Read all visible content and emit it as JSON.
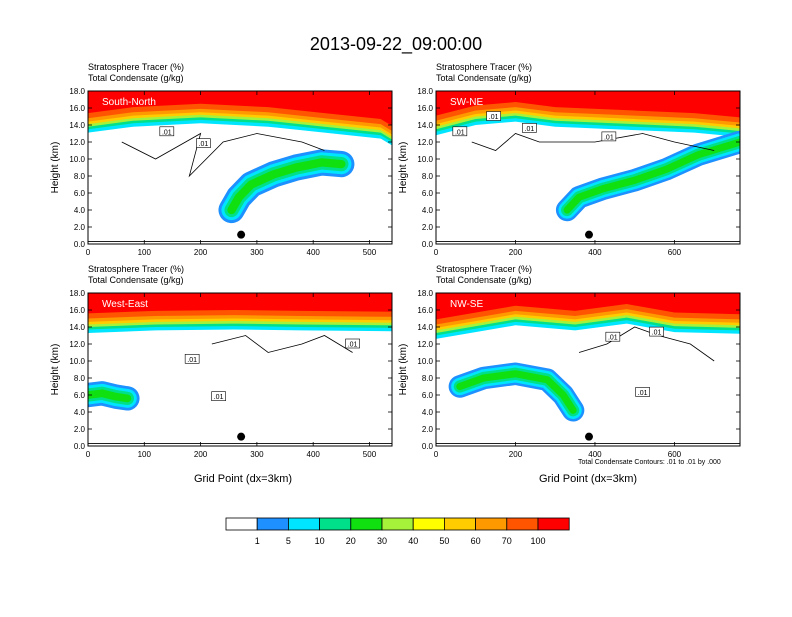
{
  "title": "2013-09-22_09:00:00",
  "chart_data": {
    "type": "contour",
    "y_axis_label": "Height (km)",
    "x_axis_label": "Grid Point (dx=3km)",
    "y_ticks": [
      "0.0",
      "2.0",
      "4.0",
      "6.0",
      "8.0",
      "10.0",
      "12.0",
      "14.0",
      "16.0",
      "18.0"
    ],
    "ylim": [
      0,
      18
    ],
    "field_title": "Stratosphere Tracer   (%)",
    "contour_title": "Total Condensate   (g/kg)",
    "contour_info": "Total Condensate Contours: .01 to .01 by .000",
    "contour_label": ".01",
    "colorbar": {
      "labels": [
        "1",
        "5",
        "10",
        "20",
        "30",
        "40",
        "50",
        "60",
        "70",
        "100"
      ],
      "colors": [
        "#ffffff",
        "#1e90ff",
        "#00e5ff",
        "#00e08a",
        "#10e010",
        "#a6f23a",
        "#ffff00",
        "#ffcc00",
        "#ff9900",
        "#ff5500",
        "#ff0000"
      ]
    },
    "panels": [
      {
        "name": "South-North",
        "xlim": [
          0,
          540
        ],
        "x_ticks": [
          "0",
          "100",
          "200",
          "300",
          "400",
          "500"
        ],
        "marker_x": 272,
        "marker_h": 1.1,
        "plume": [
          [
            255,
            4
          ],
          [
            268,
            5.5
          ],
          [
            290,
            7
          ],
          [
            330,
            8.2
          ],
          [
            370,
            9
          ],
          [
            415,
            9.6
          ],
          [
            450,
            9.4
          ]
        ],
        "plume_width": 1.4,
        "contour_labels": [
          {
            "x": 140,
            "h": 13.2
          },
          {
            "x": 205,
            "h": 11.8
          }
        ],
        "top_band": [
          [
            0,
            14.5
          ],
          [
            80,
            15.2
          ],
          [
            200,
            15.6
          ],
          [
            320,
            15.2
          ],
          [
            420,
            14.5
          ],
          [
            520,
            13.8
          ],
          [
            540,
            13.0
          ]
        ],
        "outline": [
          [
            60,
            12
          ],
          [
            120,
            10
          ],
          [
            200,
            13
          ],
          [
            180,
            8
          ],
          [
            240,
            12
          ],
          [
            300,
            13
          ],
          [
            380,
            12
          ],
          [
            420,
            11
          ]
        ]
      },
      {
        "name": "SW-NE",
        "xlim": [
          0,
          765
        ],
        "x_ticks": [
          "0",
          "200",
          "400",
          "600"
        ],
        "marker_x": 385,
        "marker_h": 1.1,
        "plume": [
          [
            330,
            4
          ],
          [
            360,
            5.5
          ],
          [
            420,
            6.5
          ],
          [
            500,
            7.5
          ],
          [
            580,
            8.8
          ],
          [
            660,
            10.5
          ],
          [
            765,
            12
          ]
        ],
        "plume_width": 1.2,
        "contour_labels": [
          {
            "x": 60,
            "h": 13.2
          },
          {
            "x": 145,
            "h": 15.0
          },
          {
            "x": 235,
            "h": 13.6
          },
          {
            "x": 435,
            "h": 12.6
          }
        ],
        "top_band": [
          [
            0,
            14.2
          ],
          [
            100,
            15.4
          ],
          [
            200,
            15.8
          ],
          [
            300,
            15.2
          ],
          [
            500,
            14.8
          ],
          [
            650,
            14.5
          ],
          [
            765,
            14.0
          ]
        ],
        "outline": [
          [
            90,
            12
          ],
          [
            150,
            11
          ],
          [
            200,
            13
          ],
          [
            260,
            12
          ],
          [
            400,
            12
          ],
          [
            520,
            13
          ],
          [
            600,
            12
          ],
          [
            700,
            11
          ]
        ]
      },
      {
        "name": "West-East",
        "xlim": [
          0,
          540
        ],
        "x_ticks": [
          "0",
          "100",
          "200",
          "300",
          "400",
          "500"
        ],
        "marker_x": 272,
        "marker_h": 1.1,
        "plume": [
          [
            0,
            6
          ],
          [
            25,
            6.2
          ],
          [
            50,
            5.8
          ],
          [
            70,
            5.6
          ]
        ],
        "plume_width": 1.3,
        "contour_labels": [
          {
            "x": 185,
            "h": 10.2
          },
          {
            "x": 470,
            "h": 12.0
          },
          {
            "x": 232,
            "h": 5.8
          }
        ],
        "top_band": [
          [
            0,
            14.7
          ],
          [
            120,
            15.0
          ],
          [
            260,
            15.1
          ],
          [
            380,
            15.0
          ],
          [
            540,
            14.9
          ]
        ],
        "outline": [
          [
            220,
            12
          ],
          [
            280,
            13
          ],
          [
            320,
            11
          ],
          [
            380,
            12
          ],
          [
            420,
            13
          ],
          [
            470,
            11
          ]
        ]
      },
      {
        "name": "NW-SE",
        "xlim": [
          0,
          765
        ],
        "x_ticks": [
          "0",
          "200",
          "400",
          "600"
        ],
        "marker_x": 385,
        "marker_h": 1.1,
        "plume": [
          [
            60,
            7
          ],
          [
            120,
            8
          ],
          [
            200,
            8.5
          ],
          [
            280,
            7.8
          ],
          [
            320,
            6
          ],
          [
            345,
            4.2
          ]
        ],
        "plume_width": 1.2,
        "contour_labels": [
          {
            "x": 445,
            "h": 12.8
          },
          {
            "x": 555,
            "h": 13.4
          },
          {
            "x": 520,
            "h": 6.3
          }
        ],
        "top_band": [
          [
            0,
            14.0
          ],
          [
            200,
            15.6
          ],
          [
            350,
            15.0
          ],
          [
            480,
            15.8
          ],
          [
            600,
            14.8
          ],
          [
            765,
            14.6
          ]
        ],
        "outline": [
          [
            360,
            11
          ],
          [
            430,
            12
          ],
          [
            500,
            14
          ],
          [
            560,
            13
          ],
          [
            640,
            12
          ],
          [
            700,
            10
          ]
        ]
      }
    ]
  }
}
